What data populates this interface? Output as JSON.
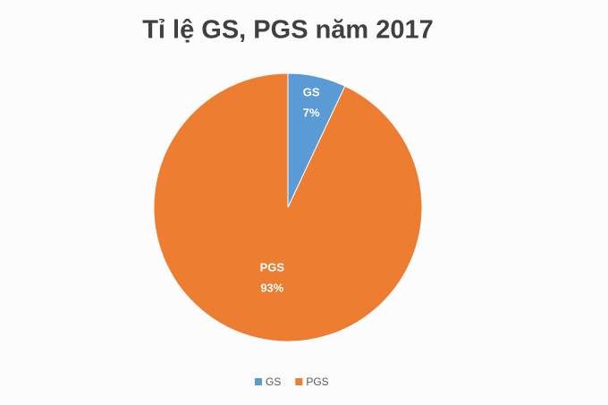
{
  "chart_data": {
    "type": "pie",
    "title": "Tỉ lệ GS, PGS năm 2017",
    "categories": [
      "GS",
      "PGS"
    ],
    "values": [
      7,
      93
    ],
    "value_labels": [
      "7%",
      "93%"
    ],
    "colors": [
      "#5b9bd5",
      "#ed7d31"
    ],
    "legend": "bottom"
  }
}
